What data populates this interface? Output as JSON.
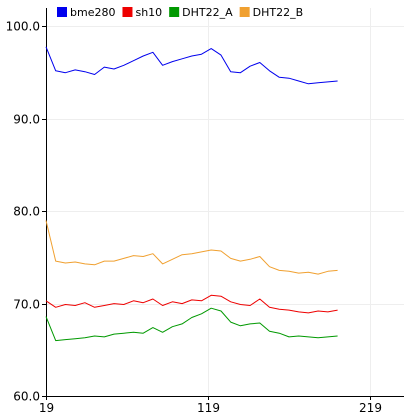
{
  "chart_data": {
    "type": "line",
    "title": "",
    "xlabel": "",
    "ylabel": "",
    "xlim": [
      19,
      240
    ],
    "ylim": [
      60,
      102
    ],
    "x_ticks": [
      19,
      119,
      219
    ],
    "y_ticks": [
      60.0,
      70.0,
      80.0,
      90.0,
      100.0
    ],
    "x_tick_labels": [
      "19",
      "119",
      "219"
    ],
    "y_tick_labels": [
      "60.0",
      "70.0",
      "80.0",
      "90.0",
      "100.0"
    ],
    "grid": true,
    "legend_position": "top",
    "x": [
      19,
      25,
      31,
      37,
      43,
      49,
      55,
      61,
      67,
      73,
      79,
      85,
      91,
      97,
      103,
      109,
      115,
      121,
      127,
      133,
      139,
      145,
      151,
      157,
      163,
      169,
      175,
      181,
      187,
      193,
      199
    ],
    "series": [
      {
        "name": "bme280",
        "color": "#0000ee",
        "values": [
          97.8,
          95.2,
          95.0,
          95.3,
          95.1,
          94.8,
          95.6,
          95.4,
          95.8,
          96.3,
          96.8,
          97.2,
          95.8,
          96.2,
          96.5,
          96.8,
          97.0,
          97.6,
          96.9,
          95.1,
          95.0,
          95.7,
          96.1,
          95.2,
          94.5,
          94.4,
          94.1,
          93.8,
          93.9,
          94.0,
          94.1
        ]
      },
      {
        "name": "sh10",
        "color": "#ee0000",
        "values": [
          70.3,
          69.6,
          69.9,
          69.8,
          70.1,
          69.6,
          69.8,
          70.0,
          69.9,
          70.3,
          70.1,
          70.5,
          69.8,
          70.2,
          70.0,
          70.4,
          70.3,
          70.9,
          70.8,
          70.2,
          69.9,
          69.8,
          70.5,
          69.6,
          69.4,
          69.3,
          69.1,
          69.0,
          69.2,
          69.1,
          69.3
        ]
      },
      {
        "name": "DHT22_A",
        "color": "#009900",
        "values": [
          68.6,
          66.0,
          66.1,
          66.2,
          66.3,
          66.5,
          66.4,
          66.7,
          66.8,
          66.9,
          66.8,
          67.4,
          66.9,
          67.5,
          67.8,
          68.5,
          68.9,
          69.5,
          69.2,
          68.0,
          67.6,
          67.8,
          67.9,
          67.0,
          66.8,
          66.4,
          66.5,
          66.4,
          66.3,
          66.4,
          66.5
        ]
      },
      {
        "name": "DHT22_B",
        "color": "#f0a030",
        "values": [
          79.0,
          74.6,
          74.4,
          74.5,
          74.3,
          74.2,
          74.6,
          74.6,
          74.9,
          75.2,
          75.1,
          75.4,
          74.3,
          74.8,
          75.3,
          75.4,
          75.6,
          75.8,
          75.7,
          74.9,
          74.6,
          74.8,
          75.1,
          74.0,
          73.6,
          73.5,
          73.3,
          73.4,
          73.2,
          73.5,
          73.6
        ]
      }
    ]
  }
}
